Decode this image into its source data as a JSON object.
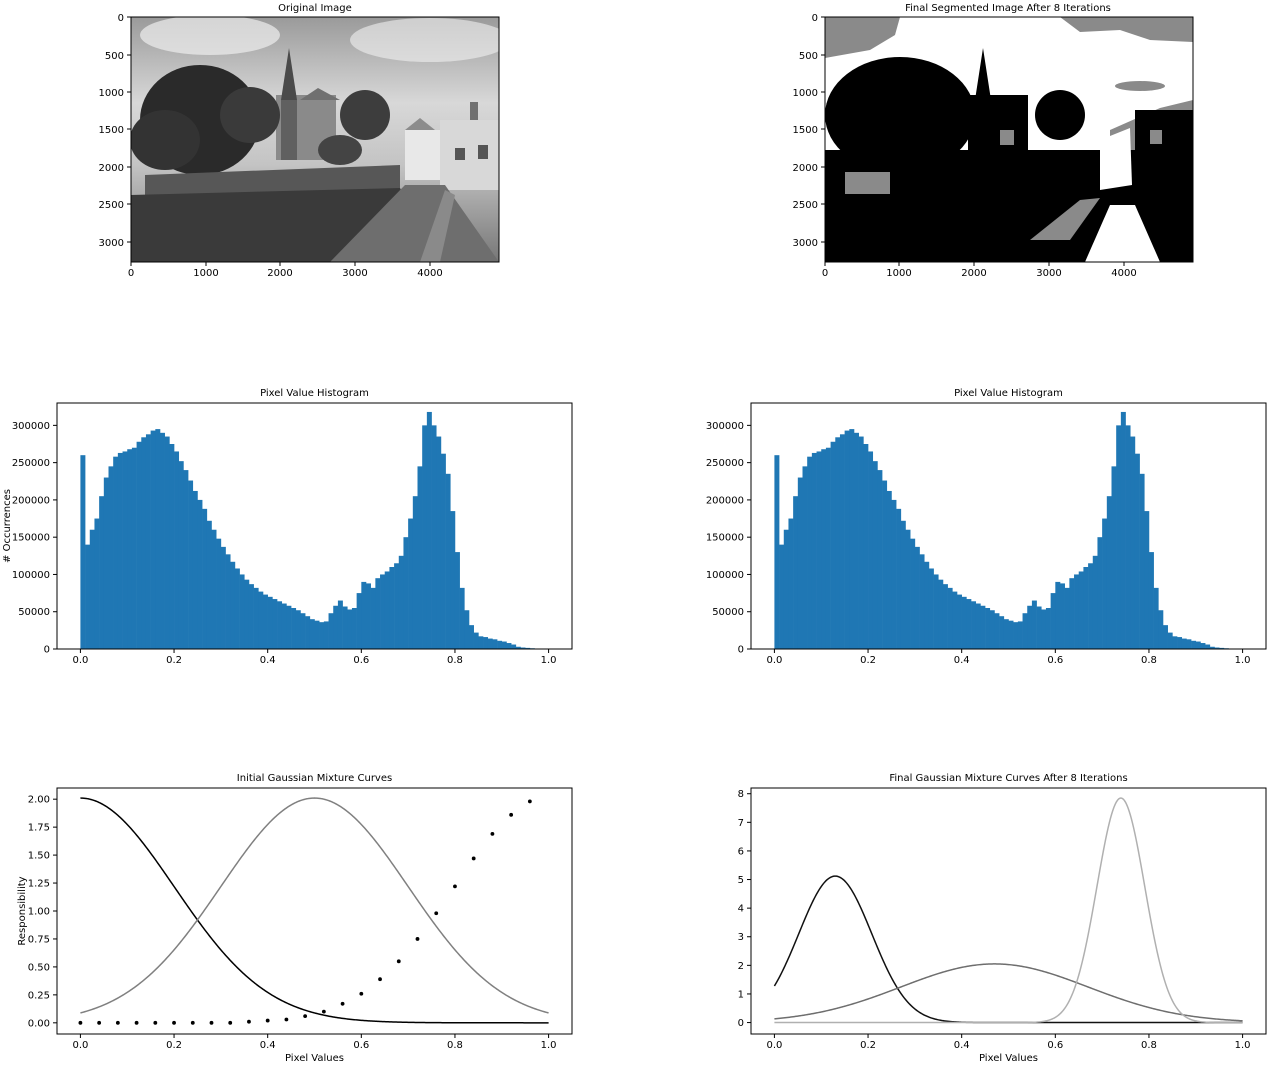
{
  "figure": {
    "background": "#ffffff",
    "bar_color": "#1f77b4"
  },
  "chart_data": [
    {
      "id": "original",
      "type": "image",
      "title": "Original Image",
      "xticks": [
        "0",
        "1000",
        "2000",
        "3000",
        "4000"
      ],
      "yticks": [
        "0",
        "500",
        "1000",
        "1500",
        "2000",
        "2500",
        "3000"
      ],
      "xlim": [
        0,
        4928
      ],
      "ylim": [
        3280,
        0
      ],
      "content": "grayscale photo of a village street with a church spire, trees and houses"
    },
    {
      "id": "segmented",
      "type": "image",
      "title": "Final Segmented Image After 8 Iterations",
      "xticks": [
        "0",
        "1000",
        "2000",
        "3000",
        "4000"
      ],
      "yticks": [
        "0",
        "500",
        "1000",
        "1500",
        "2000",
        "2500",
        "3000"
      ],
      "xlim": [
        0,
        4928
      ],
      "ylim": [
        3280,
        0
      ],
      "levels": [
        "#000000",
        "#8a8a8a",
        "#ffffff"
      ]
    },
    {
      "id": "hist-left",
      "type": "bar",
      "title": "Pixel Value Histogram",
      "xlabel": "",
      "ylabel": "# Occurrences",
      "xlim": [
        -0.05,
        1.05
      ],
      "ylim": [
        0,
        330000
      ],
      "xticks": [
        0.0,
        0.2,
        0.4,
        0.6,
        0.8,
        1.0
      ],
      "xtick_labels": [
        "0.0",
        "0.2",
        "0.4",
        "0.6",
        "0.8",
        "1.0"
      ],
      "yticks": [
        0,
        50000,
        100000,
        150000,
        200000,
        250000,
        300000
      ],
      "ytick_labels": [
        "0",
        "50000",
        "100000",
        "150000",
        "200000",
        "250000",
        "300000"
      ],
      "bin_width": 0.01,
      "bin_start": 0.0,
      "values": [
        260000,
        140000,
        160000,
        175000,
        205000,
        230000,
        245000,
        258000,
        263000,
        265000,
        268000,
        270000,
        278000,
        284000,
        288000,
        293000,
        295000,
        290000,
        285000,
        275000,
        265000,
        252000,
        240000,
        226000,
        212000,
        200000,
        188000,
        172000,
        160000,
        148000,
        137000,
        127000,
        117000,
        108000,
        100000,
        93000,
        87000,
        82000,
        77000,
        73000,
        70000,
        67000,
        64000,
        61000,
        58000,
        55000,
        52000,
        48000,
        44000,
        40000,
        38000,
        36000,
        37000,
        48000,
        58000,
        65000,
        57000,
        53000,
        55000,
        75000,
        90000,
        88000,
        82000,
        95000,
        100000,
        104000,
        110000,
        115000,
        125000,
        150000,
        175000,
        205000,
        245000,
        300000,
        318000,
        300000,
        285000,
        262000,
        235000,
        185000,
        130000,
        82000,
        52000,
        32000,
        22000,
        17000,
        16000,
        14000,
        13000,
        11000,
        10000,
        8000,
        6000,
        3000,
        2000,
        1500,
        1000,
        500,
        300,
        100
      ]
    },
    {
      "id": "hist-right",
      "type": "bar",
      "title": "Pixel Value Histogram",
      "xlabel": "",
      "ylabel": "",
      "xlim": [
        -0.05,
        1.05
      ],
      "ylim": [
        0,
        330000
      ],
      "xticks": [
        0.0,
        0.2,
        0.4,
        0.6,
        0.8,
        1.0
      ],
      "xtick_labels": [
        "0.0",
        "0.2",
        "0.4",
        "0.6",
        "0.8",
        "1.0"
      ],
      "yticks": [
        0,
        50000,
        100000,
        150000,
        200000,
        250000,
        300000
      ],
      "ytick_labels": [
        "0",
        "50000",
        "100000",
        "150000",
        "200000",
        "250000",
        "300000"
      ],
      "bin_width": 0.01,
      "bin_start": 0.0,
      "values": [
        260000,
        140000,
        160000,
        175000,
        205000,
        230000,
        245000,
        258000,
        263000,
        265000,
        268000,
        270000,
        278000,
        284000,
        288000,
        293000,
        295000,
        290000,
        285000,
        275000,
        265000,
        252000,
        240000,
        226000,
        212000,
        200000,
        188000,
        172000,
        160000,
        148000,
        137000,
        127000,
        117000,
        108000,
        100000,
        93000,
        87000,
        82000,
        77000,
        73000,
        70000,
        67000,
        64000,
        61000,
        58000,
        55000,
        52000,
        48000,
        44000,
        40000,
        38000,
        36000,
        37000,
        48000,
        58000,
        65000,
        57000,
        53000,
        55000,
        75000,
        90000,
        88000,
        82000,
        95000,
        100000,
        104000,
        110000,
        115000,
        125000,
        150000,
        175000,
        205000,
        245000,
        300000,
        318000,
        300000,
        285000,
        262000,
        235000,
        185000,
        130000,
        82000,
        52000,
        32000,
        22000,
        17000,
        16000,
        14000,
        13000,
        11000,
        10000,
        8000,
        6000,
        3000,
        2000,
        1500,
        1000,
        500,
        300,
        100
      ]
    },
    {
      "id": "init-gmm",
      "type": "line",
      "title": "Initial Gaussian Mixture Curves",
      "xlabel": "Pixel Values",
      "ylabel": "Responsibility",
      "xlim": [
        -0.05,
        1.05
      ],
      "ylim": [
        -0.1,
        2.1
      ],
      "xticks": [
        0.0,
        0.2,
        0.4,
        0.6,
        0.8,
        1.0
      ],
      "xtick_labels": [
        "0.0",
        "0.2",
        "0.4",
        "0.6",
        "0.8",
        "1.0"
      ],
      "yticks": [
        0.0,
        0.25,
        0.5,
        0.75,
        1.0,
        1.25,
        1.5,
        1.75,
        2.0
      ],
      "ytick_labels": [
        "0.00",
        "0.25",
        "0.50",
        "0.75",
        "1.00",
        "1.25",
        "1.50",
        "1.75",
        "2.00"
      ],
      "series": [
        {
          "style": "line",
          "color": "#000000",
          "mean": 0.0,
          "sd": 0.2,
          "amplitude": 2.01
        },
        {
          "style": "line",
          "color": "#808080",
          "mean": 0.5,
          "sd": 0.2,
          "amplitude": 2.01
        },
        {
          "style": "dots",
          "color": "#000000",
          "x": [
            0.0,
            0.04,
            0.08,
            0.12,
            0.16,
            0.2,
            0.24,
            0.28,
            0.32,
            0.36,
            0.4,
            0.44,
            0.48,
            0.52,
            0.56,
            0.6,
            0.64,
            0.68,
            0.72,
            0.76,
            0.8,
            0.84,
            0.88,
            0.92,
            0.96
          ],
          "y": [
            0.0,
            0.0,
            0.0,
            0.0,
            0.0,
            0.0,
            0.0,
            0.0,
            0.0,
            0.01,
            0.02,
            0.03,
            0.06,
            0.1,
            0.17,
            0.26,
            0.39,
            0.55,
            0.75,
            0.98,
            1.22,
            1.47,
            1.69,
            1.86,
            1.98
          ]
        }
      ]
    },
    {
      "id": "final-gmm",
      "type": "line",
      "title": "Final Gaussian Mixture Curves After 8 Iterations",
      "xlabel": "Pixel Values",
      "ylabel": "",
      "xlim": [
        -0.05,
        1.05
      ],
      "ylim": [
        -0.4,
        8.2
      ],
      "xticks": [
        0.0,
        0.2,
        0.4,
        0.6,
        0.8,
        1.0
      ],
      "xtick_labels": [
        "0.0",
        "0.2",
        "0.4",
        "0.6",
        "0.8",
        "1.0"
      ],
      "yticks": [
        0,
        1,
        2,
        3,
        4,
        5,
        6,
        7,
        8
      ],
      "ytick_labels": [
        "0",
        "1",
        "2",
        "3",
        "4",
        "5",
        "6",
        "7",
        "8"
      ],
      "series": [
        {
          "style": "line",
          "color": "#111111",
          "mean": 0.13,
          "sd": 0.078,
          "amplitude": 5.12
        },
        {
          "style": "line",
          "color": "#6e6e6e",
          "mean": 0.47,
          "sd": 0.2,
          "amplitude": 2.05
        },
        {
          "style": "line",
          "color": "#b0b0b0",
          "mean": 0.74,
          "sd": 0.051,
          "amplitude": 7.85
        }
      ]
    }
  ]
}
